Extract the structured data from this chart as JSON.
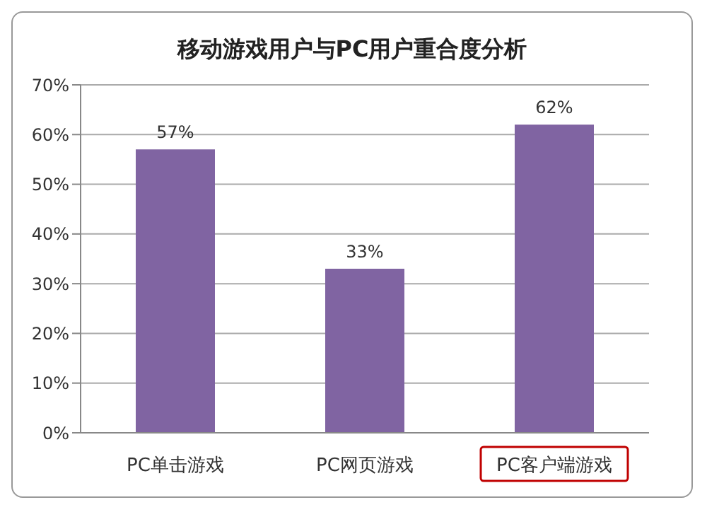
{
  "chart_data": {
    "type": "bar",
    "title": "移动游戏用户与PC用户重合度分析",
    "categories": [
      "PC单击游戏",
      "PC网页游戏",
      "PC客户端游戏"
    ],
    "values": [
      57,
      33,
      62
    ],
    "color": "#8064a2",
    "value_labels": [
      "57%",
      "33%",
      "62%"
    ],
    "ylim": [
      0,
      70
    ],
    "yticks": [
      {
        "value": 0,
        "label": "0%"
      },
      {
        "value": 10,
        "label": "10%"
      },
      {
        "value": 20,
        "label": "20%"
      },
      {
        "value": 30,
        "label": "30%"
      },
      {
        "value": 40,
        "label": "40%"
      },
      {
        "value": 50,
        "label": "50%"
      },
      {
        "value": 60,
        "label": "60%"
      },
      {
        "value": 70,
        "label": "70%"
      }
    ],
    "grid": "y"
  }
}
